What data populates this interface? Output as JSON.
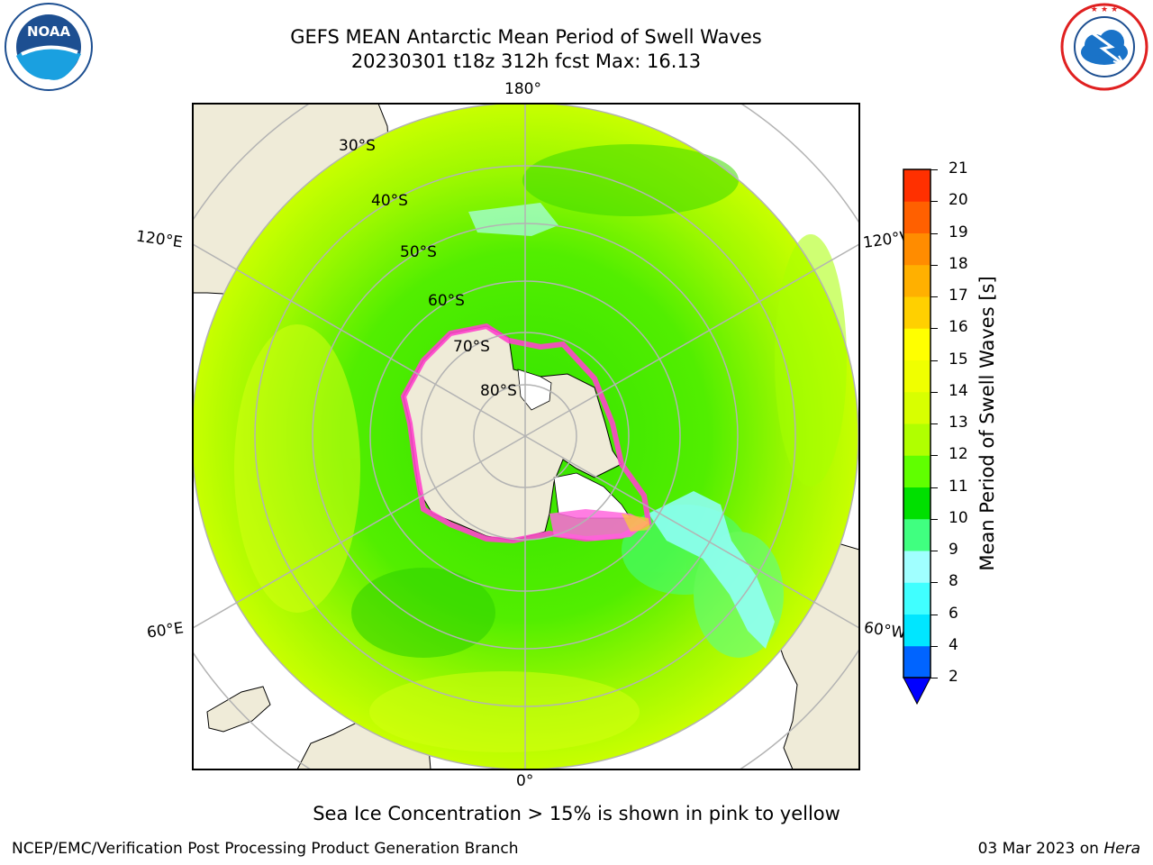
{
  "header": {
    "title_line1": "GEFS MEAN Antarctic Mean Period of Swell Waves",
    "title_line2": "20230301 t18z 312h fcst   Max: 16.13"
  },
  "logos": {
    "noaa_text": "NOAA",
    "noaa_ring": "NATIONAL OCEANIC AND ATMOSPHERIC ADMINISTRATION · U.S. DEPARTMENT OF COMMERCE",
    "nws_ring": "NATIONAL WEATHER SERVICE"
  },
  "map": {
    "longitude_labels": {
      "top": "180°",
      "bottom": "0°",
      "left_upper": "120°E",
      "left_lower": "60°E",
      "right_upper": "120°W",
      "right_lower": "60°W"
    },
    "latitude_labels": [
      "30°S",
      "40°S",
      "50°S",
      "60°S",
      "70°S",
      "80°S"
    ],
    "colors": {
      "land": "#efebd8",
      "ice_land": "#ffffff",
      "sea_ice": "#ff44cc",
      "grid": "#b3b3b3"
    }
  },
  "colorbar": {
    "label": "Mean Period of Swell Waves [s]",
    "ticks": [
      "2",
      "4",
      "6",
      "8",
      "9",
      "10",
      "11",
      "12",
      "13",
      "14",
      "15",
      "16",
      "17",
      "18",
      "19",
      "20",
      "21"
    ],
    "colors": [
      "#0064ff",
      "#00e6ff",
      "#40ffff",
      "#a0ffff",
      "#40ff80",
      "#00e000",
      "#60ff00",
      "#b0ff00",
      "#d8ff00",
      "#f0ff00",
      "#ffff00",
      "#ffd000",
      "#ffb000",
      "#ff8c00",
      "#ff6000",
      "#ff3000",
      "#ff0000"
    ],
    "under_color": "#0000ff"
  },
  "footer": {
    "note": "Sea Ice Concentration > 15% is shown in pink to yellow",
    "credit": "NCEP/EMC/Verification Post Processing Product Generation Branch",
    "date": "03 Mar 2023 on ",
    "machine": "Hera"
  }
}
